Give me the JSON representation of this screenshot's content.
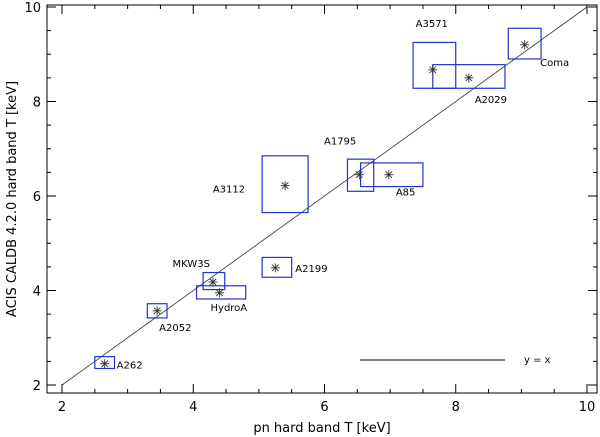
{
  "chart_data": {
    "type": "scatter",
    "title": "",
    "xlabel": "pn hard band T [keV]",
    "ylabel": "ACIS CALDB 4.2.0 hard band T [keV]",
    "xlim": [
      2,
      10
    ],
    "ylim": [
      2,
      10
    ],
    "x_ticks": [
      2,
      4,
      6,
      8,
      10
    ],
    "y_ticks": [
      2,
      4,
      6,
      8,
      10
    ],
    "grid": false,
    "reference_line": {
      "label": "y = x",
      "slope": 1,
      "intercept": 0,
      "color": "#333333"
    },
    "legend_position": "bottom-right",
    "marker": "asterisk",
    "box_color": "#2233cc",
    "clusters": [
      {
        "name": "A262",
        "x": 2.65,
        "y": 2.45,
        "x_lo": 2.5,
        "x_hi": 2.8,
        "y_lo": 2.35,
        "y_hi": 2.6
      },
      {
        "name": "A2052",
        "x": 3.45,
        "y": 3.57,
        "x_lo": 3.3,
        "x_hi": 3.6,
        "y_lo": 3.42,
        "y_hi": 3.72
      },
      {
        "name": "MKW3S",
        "x": 4.3,
        "y": 4.18,
        "x_lo": 4.15,
        "x_hi": 4.48,
        "y_lo": 4.02,
        "y_hi": 4.38
      },
      {
        "name": "HydroA",
        "x": 4.4,
        "y": 3.95,
        "x_lo": 4.05,
        "x_hi": 4.8,
        "y_lo": 3.82,
        "y_hi": 4.1
      },
      {
        "name": "A2199",
        "x": 5.25,
        "y": 4.48,
        "x_lo": 5.05,
        "x_hi": 5.5,
        "y_lo": 4.28,
        "y_hi": 4.7
      },
      {
        "name": "A3112",
        "x": 5.4,
        "y": 6.22,
        "x_lo": 5.05,
        "x_hi": 5.75,
        "y_lo": 5.65,
        "y_hi": 6.85
      },
      {
        "name": "A1795",
        "x": 6.53,
        "y": 6.45,
        "x_lo": 6.35,
        "x_hi": 6.75,
        "y_lo": 6.1,
        "y_hi": 6.78
      },
      {
        "name": "A85",
        "x": 6.98,
        "y": 6.45,
        "x_lo": 6.55,
        "x_hi": 7.5,
        "y_lo": 6.2,
        "y_hi": 6.7
      },
      {
        "name": "A3571",
        "x": 7.65,
        "y": 8.67,
        "x_lo": 7.35,
        "x_hi": 8.0,
        "y_lo": 8.28,
        "y_hi": 9.25
      },
      {
        "name": "A2029",
        "x": 8.2,
        "y": 8.5,
        "x_lo": 7.65,
        "x_hi": 8.75,
        "y_lo": 8.28,
        "y_hi": 8.78
      },
      {
        "name": "Coma",
        "x": 9.05,
        "y": 9.2,
        "x_lo": 8.8,
        "x_hi": 9.3,
        "y_lo": 8.9,
        "y_hi": 9.55
      }
    ]
  }
}
